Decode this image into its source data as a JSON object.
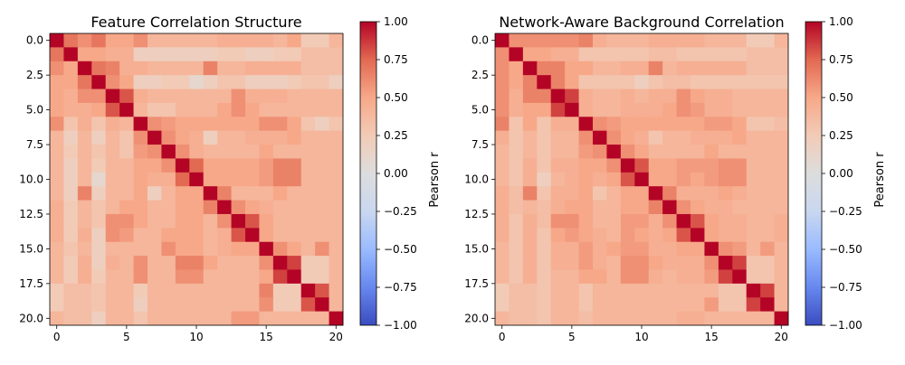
{
  "colorscale": {
    "name": "coolwarm",
    "stops": [
      "#3b4cc0",
      "#6788ee",
      "#9abbff",
      "#c9d7f0",
      "#dddddd",
      "#f2cbb7",
      "#f7a889",
      "#e26952",
      "#b40426"
    ],
    "vmin": -1.0,
    "vmax": 1.0
  },
  "chart_data": [
    {
      "type": "heatmap",
      "title": "Feature Correlation Structure",
      "xlabel": "",
      "ylabel": "",
      "n": 21,
      "xticks": [
        0,
        5,
        10,
        15,
        20
      ],
      "xtick_labels": [
        "0",
        "5",
        "10",
        "15",
        "20"
      ],
      "yticks": [
        0.0,
        2.5,
        5.0,
        7.5,
        10.0,
        12.5,
        15.0,
        17.5,
        20.0
      ],
      "ytick_labels": [
        "0.0",
        "2.5",
        "5.0",
        "7.5",
        "10.0",
        "12.5",
        "15.0",
        "17.5",
        "20.0"
      ],
      "colorbar_label": "Pearson r",
      "colorbar_ticks": [
        1.0,
        0.75,
        0.5,
        0.25,
        0.0,
        -0.25,
        -0.5,
        -0.75,
        -1.0
      ],
      "colorbar_tick_labels": [
        "1.00",
        "0.75",
        "0.50",
        "0.25",
        "0.00",
        "−0.25",
        "−0.50",
        "−0.75",
        "−1.00"
      ],
      "values": [
        [
          1.0,
          0.7,
          0.6,
          0.7,
          0.5,
          0.5,
          0.6,
          0.4,
          0.4,
          0.4,
          0.4,
          0.4,
          0.45,
          0.45,
          0.45,
          0.45,
          0.4,
          0.5,
          0.25,
          0.25,
          0.4
        ],
        [
          0.7,
          1.0,
          0.5,
          0.5,
          0.45,
          0.45,
          0.2,
          0.2,
          0.2,
          0.2,
          0.2,
          0.2,
          0.25,
          0.25,
          0.2,
          0.2,
          0.25,
          0.25,
          0.35,
          0.35,
          0.35
        ],
        [
          0.6,
          0.5,
          1.0,
          0.7,
          0.65,
          0.45,
          0.45,
          0.4,
          0.4,
          0.4,
          0.4,
          0.65,
          0.4,
          0.4,
          0.45,
          0.45,
          0.45,
          0.45,
          0.35,
          0.35,
          0.35
        ],
        [
          0.5,
          0.5,
          0.7,
          1.0,
          0.6,
          0.5,
          0.2,
          0.2,
          0.25,
          0.25,
          0.1,
          0.2,
          0.3,
          0.3,
          0.2,
          0.2,
          0.2,
          0.25,
          0.3,
          0.3,
          0.2
        ],
        [
          0.5,
          0.45,
          0.6,
          0.6,
          1.0,
          0.8,
          0.45,
          0.4,
          0.4,
          0.4,
          0.4,
          0.4,
          0.4,
          0.6,
          0.45,
          0.45,
          0.45,
          0.4,
          0.4,
          0.4,
          0.4
        ],
        [
          0.5,
          0.45,
          0.45,
          0.5,
          0.8,
          1.0,
          0.4,
          0.3,
          0.3,
          0.4,
          0.4,
          0.4,
          0.5,
          0.6,
          0.5,
          0.4,
          0.4,
          0.4,
          0.4,
          0.4,
          0.4
        ],
        [
          0.6,
          0.3,
          0.45,
          0.3,
          0.45,
          0.4,
          1.0,
          0.6,
          0.55,
          0.5,
          0.5,
          0.5,
          0.5,
          0.5,
          0.5,
          0.6,
          0.6,
          0.5,
          0.3,
          0.2,
          0.3
        ],
        [
          0.4,
          0.2,
          0.4,
          0.2,
          0.4,
          0.3,
          0.6,
          1.0,
          0.6,
          0.5,
          0.45,
          0.2,
          0.4,
          0.4,
          0.45,
          0.45,
          0.45,
          0.5,
          0.4,
          0.4,
          0.4
        ],
        [
          0.4,
          0.25,
          0.4,
          0.3,
          0.4,
          0.3,
          0.55,
          0.6,
          1.0,
          0.6,
          0.45,
          0.4,
          0.4,
          0.4,
          0.4,
          0.5,
          0.4,
          0.4,
          0.4,
          0.4,
          0.4
        ],
        [
          0.4,
          0.2,
          0.4,
          0.25,
          0.4,
          0.4,
          0.5,
          0.5,
          0.6,
          1.0,
          0.75,
          0.5,
          0.5,
          0.5,
          0.5,
          0.55,
          0.65,
          0.65,
          0.4,
          0.4,
          0.4
        ],
        [
          0.4,
          0.2,
          0.4,
          0.1,
          0.4,
          0.4,
          0.5,
          0.45,
          0.45,
          0.75,
          1.0,
          0.5,
          0.5,
          0.5,
          0.5,
          0.55,
          0.65,
          0.65,
          0.4,
          0.4,
          0.4
        ],
        [
          0.4,
          0.2,
          0.65,
          0.2,
          0.4,
          0.4,
          0.5,
          0.2,
          0.4,
          0.5,
          0.5,
          1.0,
          0.65,
          0.4,
          0.4,
          0.4,
          0.5,
          0.4,
          0.4,
          0.4,
          0.4
        ],
        [
          0.45,
          0.25,
          0.4,
          0.3,
          0.4,
          0.5,
          0.5,
          0.4,
          0.4,
          0.5,
          0.5,
          0.65,
          1.0,
          0.6,
          0.5,
          0.45,
          0.4,
          0.4,
          0.4,
          0.4,
          0.4
        ],
        [
          0.45,
          0.25,
          0.4,
          0.3,
          0.6,
          0.6,
          0.5,
          0.4,
          0.4,
          0.5,
          0.5,
          0.4,
          0.6,
          1.0,
          0.8,
          0.5,
          0.4,
          0.4,
          0.4,
          0.4,
          0.4
        ],
        [
          0.45,
          0.25,
          0.45,
          0.2,
          0.6,
          0.55,
          0.4,
          0.4,
          0.5,
          0.5,
          0.5,
          0.4,
          0.45,
          0.8,
          1.0,
          0.5,
          0.4,
          0.4,
          0.4,
          0.4,
          0.4
        ],
        [
          0.4,
          0.3,
          0.4,
          0.2,
          0.4,
          0.4,
          0.4,
          0.4,
          0.6,
          0.5,
          0.5,
          0.4,
          0.45,
          0.5,
          0.5,
          1.0,
          0.6,
          0.5,
          0.4,
          0.6,
          0.4
        ],
        [
          0.4,
          0.25,
          0.45,
          0.2,
          0.45,
          0.4,
          0.6,
          0.4,
          0.4,
          0.65,
          0.65,
          0.5,
          0.4,
          0.4,
          0.4,
          0.6,
          1.0,
          0.85,
          0.25,
          0.25,
          0.4
        ],
        [
          0.4,
          0.25,
          0.45,
          0.25,
          0.4,
          0.4,
          0.6,
          0.4,
          0.4,
          0.6,
          0.6,
          0.4,
          0.4,
          0.4,
          0.4,
          0.5,
          0.85,
          1.0,
          0.25,
          0.25,
          0.4
        ],
        [
          0.25,
          0.35,
          0.35,
          0.3,
          0.4,
          0.4,
          0.25,
          0.4,
          0.4,
          0.4,
          0.4,
          0.4,
          0.4,
          0.4,
          0.4,
          0.65,
          0.25,
          0.25,
          1.0,
          0.8,
          0.4
        ],
        [
          0.25,
          0.35,
          0.35,
          0.3,
          0.4,
          0.4,
          0.2,
          0.4,
          0.4,
          0.4,
          0.4,
          0.4,
          0.4,
          0.4,
          0.4,
          0.6,
          0.25,
          0.25,
          0.8,
          1.0,
          0.4
        ],
        [
          0.4,
          0.35,
          0.35,
          0.2,
          0.4,
          0.4,
          0.3,
          0.4,
          0.4,
          0.4,
          0.4,
          0.4,
          0.4,
          0.55,
          0.55,
          0.4,
          0.4,
          0.4,
          0.4,
          0.4,
          1.0
        ]
      ]
    },
    {
      "type": "heatmap",
      "title": "Network-Aware Background Correlation",
      "xlabel": "",
      "ylabel": "",
      "n": 21,
      "xticks": [
        0,
        5,
        10,
        15,
        20
      ],
      "xtick_labels": [
        "0",
        "5",
        "10",
        "15",
        "20"
      ],
      "yticks": [
        0.0,
        2.5,
        5.0,
        7.5,
        10.0,
        12.5,
        15.0,
        17.5,
        20.0
      ],
      "ytick_labels": [
        "0.0",
        "2.5",
        "5.0",
        "7.5",
        "10.0",
        "12.5",
        "15.0",
        "17.5",
        "20.0"
      ],
      "colorbar_label": "Pearson r",
      "colorbar_ticks": [
        1.0,
        0.75,
        0.5,
        0.25,
        0.0,
        -0.25,
        -0.5,
        -0.75,
        -1.0
      ],
      "colorbar_tick_labels": [
        "1.00",
        "0.75",
        "0.50",
        "0.25",
        "0.00",
        "−0.25",
        "−0.50",
        "−0.75",
        "−1.00"
      ],
      "values": [
        [
          1.0,
          0.6,
          0.6,
          0.6,
          0.6,
          0.6,
          0.65,
          0.45,
          0.4,
          0.4,
          0.4,
          0.45,
          0.45,
          0.45,
          0.45,
          0.4,
          0.4,
          0.4,
          0.25,
          0.25,
          0.4
        ],
        [
          0.6,
          1.0,
          0.5,
          0.5,
          0.45,
          0.45,
          0.3,
          0.3,
          0.3,
          0.3,
          0.3,
          0.35,
          0.35,
          0.3,
          0.3,
          0.3,
          0.3,
          0.3,
          0.35,
          0.35,
          0.35
        ],
        [
          0.6,
          0.5,
          1.0,
          0.65,
          0.65,
          0.5,
          0.5,
          0.4,
          0.4,
          0.45,
          0.45,
          0.65,
          0.4,
          0.45,
          0.45,
          0.45,
          0.45,
          0.45,
          0.35,
          0.35,
          0.35
        ],
        [
          0.6,
          0.5,
          0.65,
          1.0,
          0.65,
          0.5,
          0.3,
          0.3,
          0.3,
          0.3,
          0.2,
          0.3,
          0.35,
          0.35,
          0.3,
          0.3,
          0.3,
          0.3,
          0.3,
          0.3,
          0.3
        ],
        [
          0.6,
          0.45,
          0.65,
          0.65,
          1.0,
          0.85,
          0.45,
          0.4,
          0.4,
          0.45,
          0.4,
          0.45,
          0.45,
          0.6,
          0.5,
          0.45,
          0.45,
          0.4,
          0.4,
          0.4,
          0.4
        ],
        [
          0.6,
          0.45,
          0.5,
          0.5,
          0.85,
          1.0,
          0.45,
          0.4,
          0.4,
          0.45,
          0.45,
          0.45,
          0.5,
          0.6,
          0.55,
          0.45,
          0.45,
          0.4,
          0.4,
          0.4,
          0.4
        ],
        [
          0.65,
          0.3,
          0.5,
          0.3,
          0.45,
          0.45,
          1.0,
          0.6,
          0.55,
          0.5,
          0.5,
          0.5,
          0.5,
          0.5,
          0.5,
          0.55,
          0.55,
          0.5,
          0.3,
          0.3,
          0.35
        ],
        [
          0.45,
          0.3,
          0.4,
          0.3,
          0.4,
          0.4,
          0.6,
          1.0,
          0.6,
          0.5,
          0.45,
          0.3,
          0.4,
          0.4,
          0.45,
          0.45,
          0.45,
          0.5,
          0.4,
          0.4,
          0.4
        ],
        [
          0.4,
          0.3,
          0.4,
          0.3,
          0.4,
          0.4,
          0.55,
          0.6,
          1.0,
          0.6,
          0.5,
          0.4,
          0.4,
          0.4,
          0.4,
          0.5,
          0.4,
          0.4,
          0.4,
          0.4,
          0.4
        ],
        [
          0.4,
          0.3,
          0.45,
          0.3,
          0.45,
          0.45,
          0.5,
          0.5,
          0.6,
          1.0,
          0.8,
          0.5,
          0.5,
          0.55,
          0.55,
          0.55,
          0.6,
          0.6,
          0.4,
          0.4,
          0.4
        ],
        [
          0.4,
          0.3,
          0.45,
          0.2,
          0.4,
          0.45,
          0.5,
          0.45,
          0.5,
          0.8,
          1.0,
          0.5,
          0.5,
          0.55,
          0.5,
          0.55,
          0.6,
          0.6,
          0.4,
          0.4,
          0.4
        ],
        [
          0.45,
          0.35,
          0.65,
          0.3,
          0.45,
          0.45,
          0.5,
          0.3,
          0.4,
          0.5,
          0.5,
          1.0,
          0.65,
          0.45,
          0.45,
          0.45,
          0.5,
          0.45,
          0.4,
          0.4,
          0.4
        ],
        [
          0.45,
          0.35,
          0.4,
          0.35,
          0.45,
          0.5,
          0.5,
          0.4,
          0.4,
          0.5,
          0.5,
          0.65,
          1.0,
          0.6,
          0.5,
          0.45,
          0.45,
          0.4,
          0.4,
          0.4,
          0.4
        ],
        [
          0.45,
          0.3,
          0.45,
          0.35,
          0.6,
          0.6,
          0.5,
          0.4,
          0.4,
          0.55,
          0.55,
          0.45,
          0.6,
          1.0,
          0.8,
          0.5,
          0.45,
          0.45,
          0.4,
          0.4,
          0.45
        ],
        [
          0.45,
          0.3,
          0.45,
          0.3,
          0.5,
          0.55,
          0.5,
          0.45,
          0.4,
          0.55,
          0.5,
          0.45,
          0.5,
          0.8,
          1.0,
          0.5,
          0.45,
          0.45,
          0.4,
          0.4,
          0.45
        ],
        [
          0.4,
          0.3,
          0.45,
          0.3,
          0.45,
          0.45,
          0.55,
          0.45,
          0.5,
          0.55,
          0.55,
          0.45,
          0.45,
          0.5,
          0.5,
          1.0,
          0.6,
          0.55,
          0.4,
          0.55,
          0.4
        ],
        [
          0.4,
          0.3,
          0.45,
          0.3,
          0.45,
          0.45,
          0.55,
          0.45,
          0.4,
          0.6,
          0.6,
          0.5,
          0.45,
          0.45,
          0.45,
          0.6,
          1.0,
          0.85,
          0.3,
          0.3,
          0.4
        ],
        [
          0.4,
          0.3,
          0.45,
          0.3,
          0.4,
          0.4,
          0.5,
          0.5,
          0.4,
          0.6,
          0.6,
          0.45,
          0.4,
          0.45,
          0.45,
          0.55,
          0.85,
          1.0,
          0.3,
          0.3,
          0.4
        ],
        [
          0.25,
          0.35,
          0.35,
          0.3,
          0.4,
          0.4,
          0.3,
          0.4,
          0.4,
          0.4,
          0.4,
          0.4,
          0.4,
          0.4,
          0.4,
          0.4,
          0.3,
          0.3,
          1.0,
          0.85,
          0.4
        ],
        [
          0.25,
          0.35,
          0.35,
          0.3,
          0.4,
          0.4,
          0.3,
          0.4,
          0.4,
          0.4,
          0.4,
          0.4,
          0.4,
          0.4,
          0.4,
          0.55,
          0.3,
          0.3,
          0.85,
          1.0,
          0.4
        ],
        [
          0.4,
          0.35,
          0.35,
          0.3,
          0.4,
          0.4,
          0.35,
          0.4,
          0.4,
          0.4,
          0.4,
          0.4,
          0.4,
          0.45,
          0.45,
          0.4,
          0.4,
          0.4,
          0.4,
          0.4,
          1.0
        ]
      ]
    }
  ]
}
